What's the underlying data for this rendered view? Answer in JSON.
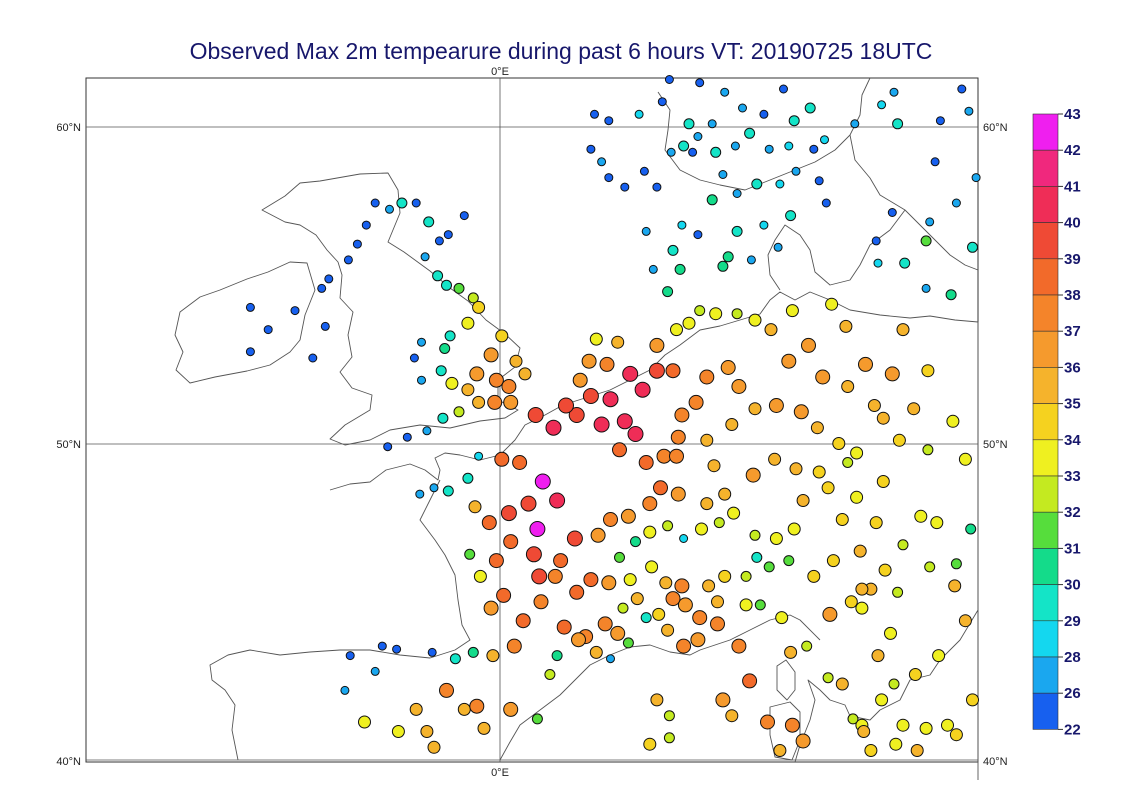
{
  "title": "Observed Max 2m tempearure during past 6 hours VT: 20190725 18UTC",
  "axes": {
    "top_lon": "0°E",
    "bottom_lon": "0°E",
    "lat_left": [
      "60°N",
      "50°N",
      "40°N"
    ],
    "lat_right": [
      "60°N",
      "50°N",
      "40°N"
    ]
  },
  "colorbar": {
    "labels": [
      "43",
      "42",
      "41",
      "40",
      "39",
      "38",
      "37",
      "36",
      "35",
      "34",
      "33",
      "32",
      "31",
      "30",
      "29",
      "28",
      "26",
      "22"
    ],
    "colors": [
      "#ef1fef",
      "#f0287d",
      "#ef2d57",
      "#ef4a35",
      "#f26a2a",
      "#f4842a",
      "#f59a2d",
      "#f5b32c",
      "#f5d21f",
      "#eff020",
      "#c4ea20",
      "#56dd3c",
      "#14db8a",
      "#14e4c7",
      "#14d7ef",
      "#1aa7ef",
      "#1760ef",
      "#4a1bef"
    ]
  },
  "stations_note": "",
  "stations": [
    [
      -14,
      54.3,
      26
    ],
    [
      -14,
      52.9,
      26
    ],
    [
      -13,
      53.6,
      26
    ],
    [
      -11.5,
      54.2,
      26
    ],
    [
      -10.5,
      52.7,
      26
    ],
    [
      -9.8,
      53.7,
      26
    ],
    [
      -10,
      54.9,
      26
    ],
    [
      -9.6,
      55.2,
      26
    ],
    [
      -8.5,
      55.8,
      26
    ],
    [
      -8,
      56.3,
      26
    ],
    [
      -7.5,
      56.9,
      26
    ],
    [
      -7,
      57.6,
      26
    ],
    [
      -6.2,
      57.4,
      28
    ],
    [
      -5.5,
      57.6,
      30
    ],
    [
      -4.7,
      57.6,
      26
    ],
    [
      -4,
      57.0,
      30
    ],
    [
      -3.4,
      56.4,
      26
    ],
    [
      -2.9,
      56.6,
      26
    ],
    [
      -2,
      57.2,
      26
    ],
    [
      -4.2,
      55.9,
      28
    ],
    [
      -3.5,
      55.3,
      30
    ],
    [
      -3,
      55.0,
      30
    ],
    [
      -2.3,
      54.9,
      32
    ],
    [
      -1.5,
      54.6,
      33
    ],
    [
      -1.2,
      54.3,
      35
    ],
    [
      -1.8,
      53.8,
      34
    ],
    [
      -2.8,
      53.4,
      30
    ],
    [
      -3.1,
      53.0,
      31
    ],
    [
      -4.4,
      53.2,
      28
    ],
    [
      -4.8,
      52.7,
      26
    ],
    [
      -4.4,
      52.0,
      28
    ],
    [
      -3.3,
      52.3,
      30
    ],
    [
      -2.7,
      51.9,
      34
    ],
    [
      -1.8,
      51.7,
      36
    ],
    [
      -1.3,
      52.2,
      37
    ],
    [
      -0.5,
      52.8,
      37
    ],
    [
      0.1,
      53.4,
      35
    ],
    [
      -0.2,
      52.0,
      38
    ],
    [
      0.5,
      51.8,
      38
    ],
    [
      0.9,
      52.6,
      36
    ],
    [
      1.4,
      52.2,
      36
    ],
    [
      -0.3,
      51.3,
      38
    ],
    [
      0.6,
      51.3,
      37
    ],
    [
      -1.2,
      51.3,
      36
    ],
    [
      -2.3,
      51.0,
      33
    ],
    [
      -3.2,
      50.8,
      30
    ],
    [
      -4.1,
      50.4,
      28
    ],
    [
      -5.2,
      50.2,
      26
    ],
    [
      -6.3,
      49.9,
      26
    ],
    [
      -4.5,
      48.4,
      28
    ],
    [
      -3.7,
      48.6,
      28
    ],
    [
      -2.9,
      48.5,
      30
    ],
    [
      -1.8,
      48.9,
      30
    ],
    [
      -1.2,
      49.6,
      29
    ],
    [
      0.1,
      49.5,
      39
    ],
    [
      1.1,
      49.4,
      39
    ],
    [
      -1.4,
      48.0,
      36
    ],
    [
      -0.6,
      47.5,
      39
    ],
    [
      0.5,
      47.8,
      40
    ],
    [
      1.6,
      48.1,
      40
    ],
    [
      2.4,
      48.8,
      43
    ],
    [
      2.1,
      47.3,
      43
    ],
    [
      3.2,
      48.2,
      41
    ],
    [
      1.9,
      46.5,
      40
    ],
    [
      0.6,
      46.9,
      39
    ],
    [
      -0.2,
      46.3,
      39
    ],
    [
      -1.1,
      45.8,
      34
    ],
    [
      -1.7,
      46.5,
      32
    ],
    [
      -0.5,
      44.8,
      37
    ],
    [
      0.2,
      45.2,
      39
    ],
    [
      1.3,
      44.4,
      39
    ],
    [
      0.8,
      43.6,
      38
    ],
    [
      -0.4,
      43.3,
      36
    ],
    [
      -1.5,
      43.4,
      31
    ],
    [
      -2.5,
      43.2,
      30
    ],
    [
      -3.8,
      43.4,
      27
    ],
    [
      -5.8,
      43.5,
      26
    ],
    [
      -6.6,
      43.6,
      26
    ],
    [
      -8.4,
      43.3,
      26
    ],
    [
      -8.7,
      42.2,
      28
    ],
    [
      -7,
      42.8,
      28
    ],
    [
      -4.7,
      41.6,
      36
    ],
    [
      -3,
      42.2,
      38
    ],
    [
      -2,
      41.6,
      36
    ],
    [
      -1.3,
      41.7,
      38
    ],
    [
      0.6,
      41.6,
      37
    ],
    [
      -0.9,
      41.0,
      36
    ],
    [
      -4.1,
      40.9,
      36
    ],
    [
      -5.7,
      40.9,
      34
    ],
    [
      -3.7,
      40.4,
      36
    ],
    [
      -7.6,
      41.2,
      34
    ],
    [
      -0.4,
      39.5,
      35
    ],
    [
      2.1,
      41.3,
      32
    ],
    [
      2.8,
      42.7,
      33
    ],
    [
      3.2,
      43.3,
      31
    ],
    [
      4.8,
      43.9,
      38
    ],
    [
      5.4,
      43.4,
      36
    ],
    [
      6.2,
      43.2,
      28
    ],
    [
      7.2,
      43.7,
      32
    ],
    [
      8.2,
      44.5,
      30
    ],
    [
      9.4,
      44.1,
      36
    ],
    [
      10.3,
      43.6,
      38
    ],
    [
      11.1,
      43.8,
      37
    ],
    [
      12.2,
      44.3,
      38
    ],
    [
      13.4,
      43.6,
      38
    ],
    [
      14,
      42.5,
      39
    ],
    [
      12.5,
      41.9,
      37
    ],
    [
      13,
      41.4,
      36
    ],
    [
      15,
      41.2,
      38
    ],
    [
      16.4,
      41.1,
      38
    ],
    [
      17,
      40.6,
      37
    ],
    [
      15.7,
      40.3,
      36
    ],
    [
      9.5,
      40.7,
      33
    ],
    [
      9.2,
      39.2,
      34
    ],
    [
      8.4,
      40.5,
      35
    ],
    [
      9.5,
      41.4,
      33
    ],
    [
      8.8,
      41.9,
      36
    ],
    [
      2,
      50.9,
      40
    ],
    [
      3,
      50.5,
      41
    ],
    [
      4.3,
      50.9,
      40
    ],
    [
      5.1,
      51.5,
      40
    ],
    [
      6.2,
      51.4,
      41
    ],
    [
      5.7,
      50.6,
      41
    ],
    [
      3.7,
      51.2,
      40
    ],
    [
      4.5,
      52.0,
      37
    ],
    [
      5,
      52.6,
      37
    ],
    [
      6,
      52.5,
      38
    ],
    [
      6.6,
      53.2,
      36
    ],
    [
      5.4,
      53.3,
      34
    ],
    [
      7.3,
      52.2,
      41
    ],
    [
      8,
      51.7,
      41
    ],
    [
      8.8,
      52.3,
      40
    ],
    [
      9.7,
      52.3,
      39
    ],
    [
      7,
      50.7,
      41
    ],
    [
      7.6,
      50.3,
      41
    ],
    [
      6.7,
      49.8,
      39
    ],
    [
      8.2,
      49.4,
      39
    ],
    [
      9.2,
      49.6,
      38
    ],
    [
      10,
      50.2,
      38
    ],
    [
      10.2,
      50.9,
      38
    ],
    [
      11,
      51.3,
      38
    ],
    [
      11.6,
      52.1,
      38
    ],
    [
      12.8,
      52.4,
      37
    ],
    [
      13.4,
      51.8,
      37
    ],
    [
      14.3,
      51.1,
      36
    ],
    [
      13,
      50.6,
      36
    ],
    [
      11.6,
      50.1,
      36
    ],
    [
      12,
      49.3,
      36
    ],
    [
      9.9,
      49.6,
      38
    ],
    [
      9,
      48.6,
      39
    ],
    [
      8.4,
      48.1,
      38
    ],
    [
      10,
      48.4,
      37
    ],
    [
      11.6,
      48.1,
      36
    ],
    [
      12.6,
      48.4,
      36
    ],
    [
      13.1,
      47.8,
      34
    ],
    [
      9.9,
      53.6,
      34
    ],
    [
      8.8,
      53.1,
      37
    ],
    [
      10.6,
      53.8,
      34
    ],
    [
      11.2,
      54.2,
      33
    ],
    [
      12.1,
      54.1,
      34
    ],
    [
      13.3,
      54.1,
      33
    ],
    [
      14.3,
      53.9,
      34
    ],
    [
      9.4,
      54.8,
      31
    ],
    [
      10.1,
      55.5,
      31
    ],
    [
      8.6,
      55.5,
      28
    ],
    [
      9.7,
      56.1,
      30
    ],
    [
      10.2,
      56.9,
      29
    ],
    [
      8.2,
      56.7,
      28
    ],
    [
      12.5,
      55.6,
      31
    ],
    [
      15.2,
      53.6,
      36
    ],
    [
      16.4,
      54.2,
      34
    ],
    [
      17.3,
      53.1,
      37
    ],
    [
      18.6,
      54.4,
      34
    ],
    [
      19.4,
      53.7,
      36
    ],
    [
      20.5,
      52.5,
      37
    ],
    [
      21,
      51.2,
      36
    ],
    [
      19.5,
      51.8,
      36
    ],
    [
      18.1,
      52.1,
      37
    ],
    [
      16.2,
      52.6,
      37
    ],
    [
      15.5,
      51.2,
      37
    ],
    [
      16.9,
      51.0,
      37
    ],
    [
      17.8,
      50.5,
      36
    ],
    [
      19,
      50.0,
      35
    ],
    [
      20,
      49.7,
      34
    ],
    [
      21.5,
      50.8,
      36
    ],
    [
      22,
      52.2,
      37
    ],
    [
      22.6,
      53.6,
      36
    ],
    [
      22.4,
      50.1,
      35
    ],
    [
      19.5,
      49.4,
      33
    ],
    [
      17.9,
      49.1,
      35
    ],
    [
      16.6,
      49.2,
      36
    ],
    [
      15.4,
      49.5,
      36
    ],
    [
      14.2,
      49.0,
      37
    ],
    [
      17,
      48.2,
      36
    ],
    [
      18.4,
      48.6,
      35
    ],
    [
      20,
      48.3,
      34
    ],
    [
      21.5,
      48.8,
      35
    ],
    [
      19.2,
      47.6,
      35
    ],
    [
      21.1,
      47.5,
      35
    ],
    [
      20.2,
      46.6,
      36
    ],
    [
      18.7,
      46.3,
      35
    ],
    [
      17.6,
      45.8,
      35
    ],
    [
      16.2,
      46.3,
      32
    ],
    [
      15.1,
      46.1,
      32
    ],
    [
      14.4,
      46.4,
      30
    ],
    [
      13.8,
      45.8,
      33
    ],
    [
      12.6,
      45.8,
      35
    ],
    [
      11.7,
      45.5,
      36
    ],
    [
      10.2,
      45.5,
      38
    ],
    [
      9.3,
      45.6,
      36
    ],
    [
      8.5,
      46.1,
      34
    ],
    [
      7.3,
      45.7,
      34
    ],
    [
      6.7,
      46.4,
      32
    ],
    [
      7.6,
      46.9,
      31
    ],
    [
      8.4,
      47.2,
      34
    ],
    [
      9.4,
      47.4,
      33
    ],
    [
      10.3,
      47.0,
      29
    ],
    [
      11.3,
      47.3,
      34
    ],
    [
      12.3,
      47.5,
      33
    ],
    [
      14.3,
      47.1,
      33
    ],
    [
      15.5,
      47.0,
      34
    ],
    [
      16.5,
      47.3,
      34
    ],
    [
      22.6,
      46.8,
      33
    ],
    [
      21.6,
      46.0,
      35
    ],
    [
      22.3,
      45.3,
      33
    ],
    [
      20.8,
      45.4,
      36
    ],
    [
      19.7,
      45.0,
      35
    ],
    [
      18.5,
      44.6,
      37
    ],
    [
      17.2,
      43.6,
      33
    ],
    [
      16.3,
      43.4,
      36
    ],
    [
      15.8,
      44.5,
      34
    ],
    [
      14.6,
      44.9,
      32
    ],
    [
      13.8,
      44.9,
      34
    ],
    [
      12.2,
      45.0,
      36
    ],
    [
      11.2,
      44.5,
      38
    ],
    [
      10.4,
      44.9,
      37
    ],
    [
      9.7,
      45.1,
      38
    ],
    [
      8.9,
      44.6,
      35
    ],
    [
      7.7,
      45.1,
      36
    ],
    [
      6.9,
      44.8,
      33
    ],
    [
      6.1,
      45.6,
      37
    ],
    [
      5.1,
      45.7,
      39
    ],
    [
      4.3,
      45.3,
      39
    ],
    [
      3.1,
      45.8,
      38
    ],
    [
      2.3,
      45.0,
      38
    ],
    [
      3.6,
      44.2,
      39
    ],
    [
      4.4,
      43.8,
      37
    ],
    [
      5.9,
      44.3,
      38
    ],
    [
      6.6,
      44.0,
      37
    ],
    [
      5.5,
      47.1,
      37
    ],
    [
      6.2,
      47.6,
      38
    ],
    [
      7.2,
      47.7,
      37
    ],
    [
      4.2,
      47.0,
      40
    ],
    [
      3.4,
      46.3,
      39
    ],
    [
      2.2,
      45.8,
      40
    ],
    [
      5.3,
      60.4,
      26
    ],
    [
      6.1,
      60.2,
      26
    ],
    [
      7.8,
      60.4,
      29
    ],
    [
      9.1,
      60.8,
      26
    ],
    [
      10.6,
      60.1,
      30
    ],
    [
      11.1,
      59.7,
      28
    ],
    [
      10.8,
      59.2,
      26
    ],
    [
      9.6,
      59.2,
      28
    ],
    [
      8.1,
      58.6,
      26
    ],
    [
      7,
      58.1,
      26
    ],
    [
      6.1,
      58.4,
      26
    ],
    [
      5.7,
      58.9,
      28
    ],
    [
      5.1,
      59.3,
      26
    ],
    [
      8.8,
      58.1,
      26
    ],
    [
      10.3,
      59.4,
      30
    ],
    [
      11.9,
      60.1,
      28
    ],
    [
      12.6,
      61.1,
      28
    ],
    [
      11.2,
      61.4,
      26
    ],
    [
      9.5,
      61.5,
      26
    ],
    [
      7.5,
      61.8,
      26
    ],
    [
      6.1,
      61.9,
      26
    ],
    [
      13.6,
      60.6,
      28
    ],
    [
      14.8,
      60.4,
      26
    ],
    [
      15.9,
      61.2,
      26
    ],
    [
      17.1,
      61.7,
      26
    ],
    [
      18.3,
      61.9,
      26
    ],
    [
      16.5,
      60.2,
      30
    ],
    [
      17.4,
      60.6,
      30
    ],
    [
      18.2,
      59.6,
      29
    ],
    [
      17.6,
      59.3,
      26
    ],
    [
      16.2,
      59.4,
      29
    ],
    [
      15.1,
      59.3,
      28
    ],
    [
      14,
      59.8,
      30
    ],
    [
      13.2,
      59.4,
      28
    ],
    [
      12.1,
      59.2,
      30
    ],
    [
      12.5,
      58.5,
      28
    ],
    [
      11.9,
      57.7,
      31
    ],
    [
      13.3,
      57.9,
      28
    ],
    [
      14.4,
      58.2,
      30
    ],
    [
      15.7,
      58.2,
      29
    ],
    [
      16.6,
      58.6,
      28
    ],
    [
      17.9,
      58.3,
      26
    ],
    [
      18.3,
      57.6,
      26
    ],
    [
      16.3,
      57.2,
      30
    ],
    [
      14.8,
      56.9,
      29
    ],
    [
      13.3,
      56.7,
      30
    ],
    [
      12.8,
      55.9,
      31
    ],
    [
      14.1,
      55.8,
      28
    ],
    [
      15.6,
      56.2,
      28
    ],
    [
      11.1,
      56.6,
      26
    ],
    [
      19.9,
      60.1,
      28
    ],
    [
      21.4,
      60.7,
      29
    ],
    [
      22.3,
      60.1,
      30
    ],
    [
      24.7,
      60.2,
      26
    ],
    [
      26.3,
      60.5,
      28
    ],
    [
      22.1,
      61.1,
      28
    ],
    [
      20,
      62.1,
      29
    ],
    [
      21.8,
      62.6,
      26
    ],
    [
      24.5,
      62.5,
      26
    ],
    [
      25.9,
      61.2,
      26
    ],
    [
      27.4,
      60.8,
      26
    ],
    [
      28.1,
      60.3,
      30
    ],
    [
      24.4,
      58.9,
      26
    ],
    [
      26.7,
      58.4,
      28
    ],
    [
      27.6,
      58.8,
      30
    ],
    [
      25.6,
      57.6,
      28
    ],
    [
      24.1,
      57.0,
      28
    ],
    [
      22,
      57.3,
      26
    ],
    [
      21.1,
      56.4,
      26
    ],
    [
      23.9,
      56.4,
      32
    ],
    [
      26.5,
      56.2,
      30
    ],
    [
      27.8,
      55.6,
      28
    ],
    [
      25.3,
      54.7,
      31
    ],
    [
      23.9,
      54.9,
      28
    ],
    [
      22.7,
      55.7,
      30
    ],
    [
      21.2,
      55.7,
      29
    ],
    [
      27.5,
      53.9,
      30
    ],
    [
      27.6,
      52.5,
      31
    ],
    [
      24,
      52.3,
      35
    ],
    [
      23.2,
      51.1,
      36
    ],
    [
      25.4,
      50.7,
      34
    ],
    [
      26.1,
      49.5,
      34
    ],
    [
      24,
      49.8,
      33
    ],
    [
      27.4,
      50.1,
      36
    ],
    [
      27.2,
      48.2,
      34
    ],
    [
      24.5,
      47.5,
      34
    ],
    [
      26.4,
      47.3,
      31
    ],
    [
      27.6,
      47.2,
      35
    ],
    [
      27.1,
      46.6,
      34
    ],
    [
      25.6,
      46.2,
      32
    ],
    [
      24.1,
      46.1,
      33
    ],
    [
      23.6,
      47.7,
      34
    ],
    [
      25.5,
      45.5,
      36
    ],
    [
      26.1,
      44.4,
      36
    ],
    [
      27.5,
      44.0,
      33
    ],
    [
      27.9,
      43.2,
      33
    ],
    [
      24.6,
      43.3,
      34
    ],
    [
      23.3,
      42.7,
      35
    ],
    [
      22.1,
      42.4,
      33
    ],
    [
      21.4,
      41.9,
      34
    ],
    [
      22.6,
      41.1,
      34
    ],
    [
      23.9,
      41.0,
      34
    ],
    [
      25.1,
      41.1,
      34
    ],
    [
      27.9,
      41.7,
      34
    ],
    [
      26.5,
      41.9,
      35
    ],
    [
      23.4,
      40.3,
      36
    ],
    [
      22.2,
      40.5,
      34
    ],
    [
      20.3,
      41.1,
      34
    ],
    [
      20.8,
      40.3,
      35
    ],
    [
      19.9,
      39.6,
      30
    ],
    [
      20.4,
      40.9,
      36
    ],
    [
      19.8,
      41.3,
      33
    ],
    [
      18.4,
      42.6,
      33
    ],
    [
      19.2,
      42.4,
      36
    ],
    [
      21.2,
      43.3,
      36
    ],
    [
      20.3,
      44.8,
      34
    ],
    [
      21.9,
      44.0,
      34
    ],
    [
      20.3,
      45.4,
      36
    ],
    [
      25.6,
      40.8,
      35
    ],
    [
      24.6,
      39.3,
      30
    ],
    [
      26,
      39.4,
      34
    ]
  ]
}
